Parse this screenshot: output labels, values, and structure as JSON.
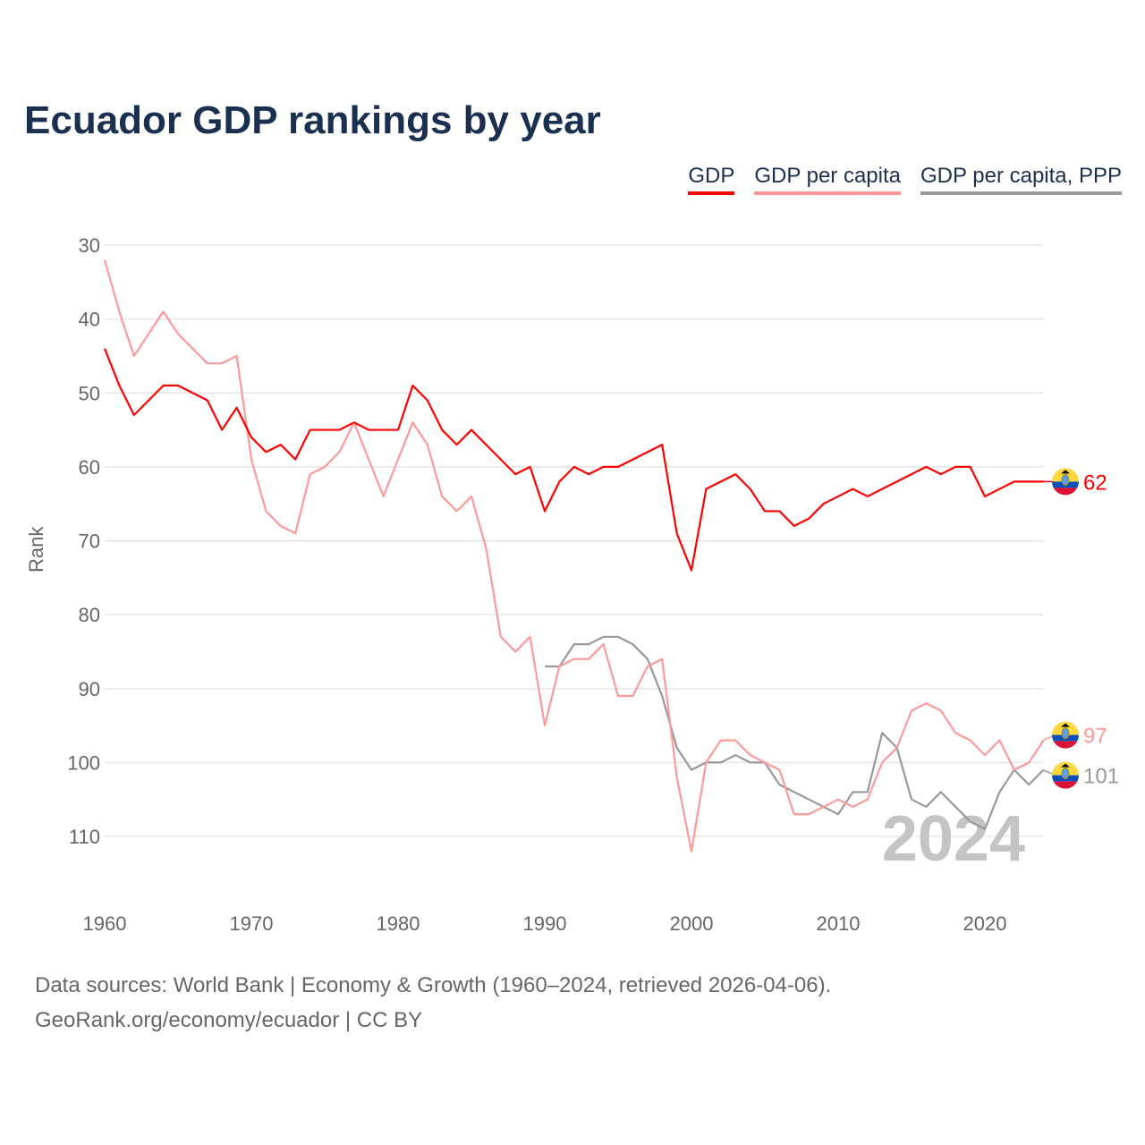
{
  "chart_data": {
    "type": "line",
    "title": "Ecuador GDP rankings by year",
    "xlabel": "",
    "ylabel": "Rank",
    "xlim": [
      1960,
      2024
    ],
    "ylim": [
      118,
      30
    ],
    "y_inverted": true,
    "x_ticks": [
      1960,
      1970,
      1980,
      1990,
      2000,
      2010,
      2020
    ],
    "y_ticks": [
      30,
      40,
      50,
      60,
      70,
      80,
      90,
      100,
      110
    ],
    "grid": "horizontal",
    "legend_position": "top-right",
    "watermark_year": "2024",
    "series": [
      {
        "name": "GDP",
        "color": "#ff0000",
        "start": 1960,
        "end_label": "62",
        "values": [
          44,
          49,
          53,
          51,
          49,
          49,
          50,
          51,
          55,
          52,
          56,
          58,
          57,
          59,
          55,
          55,
          55,
          54,
          55,
          55,
          55,
          49,
          51,
          55,
          57,
          55,
          57,
          59,
          61,
          60,
          66,
          62,
          60,
          61,
          60,
          60,
          59,
          58,
          57,
          69,
          74,
          63,
          62,
          61,
          63,
          66,
          66,
          68,
          67,
          65,
          64,
          63,
          64,
          63,
          62,
          61,
          60,
          61,
          60,
          60,
          64,
          63,
          62,
          62,
          62
        ]
      },
      {
        "name": "GDP per capita",
        "color": "#ff9999",
        "start": 1960,
        "end_label": "97",
        "values": [
          32,
          39,
          45,
          42,
          39,
          42,
          44,
          46,
          46,
          45,
          59,
          66,
          68,
          69,
          61,
          60,
          58,
          54,
          59,
          64,
          59,
          54,
          57,
          64,
          66,
          64,
          71,
          83,
          85,
          83,
          95,
          87,
          86,
          86,
          84,
          91,
          91,
          87,
          86,
          102,
          112,
          100,
          97,
          97,
          99,
          100,
          101,
          107,
          107,
          106,
          105,
          106,
          105,
          100,
          98,
          93,
          92,
          93,
          96,
          97,
          99,
          97,
          101,
          100,
          97
        ]
      },
      {
        "name": "GDP per capita, PPP",
        "color": "#999999",
        "start": 1990,
        "end_label": "101",
        "values": [
          87,
          87,
          84,
          84,
          83,
          83,
          84,
          86,
          91,
          98,
          101,
          100,
          100,
          99,
          100,
          100,
          103,
          104,
          105,
          106,
          107,
          104,
          104,
          96,
          98,
          105,
          106,
          104,
          106,
          108,
          109,
          104,
          101,
          103,
          101
        ]
      }
    ]
  },
  "footer": {
    "line1": "Data sources: World Bank | Economy & Growth (1960–2024, retrieved 2026-04-06).",
    "line2": "GeoRank.org/economy/ecuador | CC BY"
  }
}
